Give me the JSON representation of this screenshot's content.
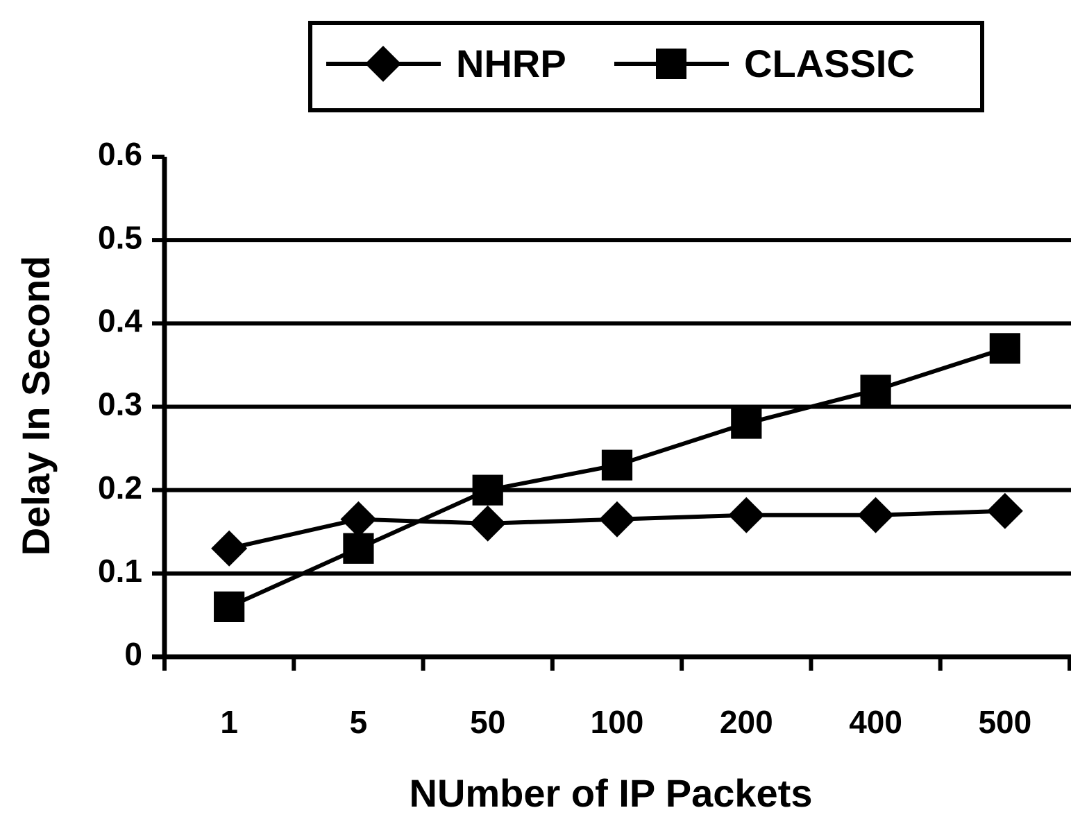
{
  "chart_data": {
    "type": "line",
    "xlabel": "NUmber of IP Packets",
    "ylabel": "Delay In Second",
    "categories": [
      "1",
      "5",
      "50",
      "100",
      "200",
      "400",
      "500"
    ],
    "series": [
      {
        "name": "NHRP",
        "color": "#000000",
        "marker": "diamond",
        "values": [
          0.13,
          0.165,
          0.16,
          0.165,
          0.17,
          0.17,
          0.175
        ]
      },
      {
        "name": "CLASSIC",
        "color": "#000000",
        "marker": "square",
        "values": [
          0.06,
          0.13,
          0.2,
          0.23,
          0.28,
          0.32,
          0.37
        ]
      }
    ],
    "ylim": [
      0,
      0.6
    ],
    "yticks": [
      0,
      0.1,
      0.2,
      0.3,
      0.4,
      0.5,
      0.6
    ],
    "grid": true,
    "legend": "top"
  }
}
